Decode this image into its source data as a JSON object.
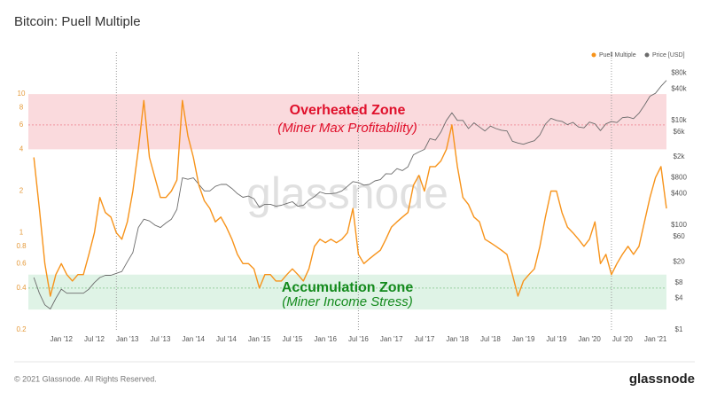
{
  "title": "Bitcoin: Puell Multiple",
  "footer": {
    "copyright": "© 2021 Glassnode. All Rights Reserved.",
    "logo": "glassnode"
  },
  "chart_data": {
    "type": "line",
    "watermark": "glassnode",
    "log_scale": true,
    "legend": "top-right",
    "x": [
      "2011-08",
      "2011-09",
      "2011-10",
      "2011-11",
      "2011-12",
      "2012-01",
      "2012-02",
      "2012-03",
      "2012-04",
      "2012-05",
      "2012-06",
      "2012-07",
      "2012-08",
      "2012-09",
      "2012-10",
      "2012-11",
      "2012-12",
      "2013-01",
      "2013-02",
      "2013-03",
      "2013-04",
      "2013-05",
      "2013-06",
      "2013-07",
      "2013-08",
      "2013-09",
      "2013-10",
      "2013-11",
      "2013-12",
      "2014-01",
      "2014-02",
      "2014-03",
      "2014-04",
      "2014-05",
      "2014-06",
      "2014-07",
      "2014-08",
      "2014-09",
      "2014-10",
      "2014-11",
      "2014-12",
      "2015-01",
      "2015-02",
      "2015-03",
      "2015-04",
      "2015-05",
      "2015-06",
      "2015-07",
      "2015-08",
      "2015-09",
      "2015-10",
      "2015-11",
      "2015-12",
      "2016-01",
      "2016-02",
      "2016-03",
      "2016-04",
      "2016-05",
      "2016-06",
      "2016-07",
      "2016-08",
      "2016-09",
      "2016-10",
      "2016-11",
      "2016-12",
      "2017-01",
      "2017-02",
      "2017-03",
      "2017-04",
      "2017-05",
      "2017-06",
      "2017-07",
      "2017-08",
      "2017-09",
      "2017-10",
      "2017-11",
      "2017-12",
      "2018-01",
      "2018-02",
      "2018-03",
      "2018-04",
      "2018-05",
      "2018-06",
      "2018-07",
      "2018-08",
      "2018-09",
      "2018-10",
      "2018-11",
      "2018-12",
      "2019-01",
      "2019-02",
      "2019-03",
      "2019-04",
      "2019-05",
      "2019-06",
      "2019-07",
      "2019-08",
      "2019-09",
      "2019-10",
      "2019-11",
      "2019-12",
      "2020-01",
      "2020-02",
      "2020-03",
      "2020-04",
      "2020-05",
      "2020-06",
      "2020-07",
      "2020-08",
      "2020-09",
      "2020-10",
      "2020-11",
      "2020-12",
      "2021-01",
      "2021-02",
      "2021-03"
    ],
    "series": [
      {
        "name": "Puell Multiple",
        "color": "#f7931a",
        "axis": "y",
        "values": [
          3.5,
          1.5,
          0.6,
          0.35,
          0.5,
          0.6,
          0.5,
          0.45,
          0.5,
          0.5,
          0.7,
          1.0,
          1.8,
          1.4,
          1.3,
          1.0,
          0.9,
          1.2,
          2.0,
          4.0,
          9.0,
          3.5,
          2.5,
          1.8,
          1.8,
          2.0,
          2.4,
          9.0,
          5.0,
          3.5,
          2.2,
          1.7,
          1.5,
          1.2,
          1.3,
          1.1,
          0.9,
          0.7,
          0.6,
          0.6,
          0.55,
          0.4,
          0.5,
          0.5,
          0.45,
          0.45,
          0.5,
          0.55,
          0.5,
          0.45,
          0.55,
          0.8,
          0.9,
          0.85,
          0.9,
          0.85,
          0.9,
          1.0,
          1.5,
          0.7,
          0.6,
          0.65,
          0.7,
          0.75,
          0.9,
          1.1,
          1.2,
          1.3,
          1.4,
          2.2,
          2.6,
          2.0,
          3.0,
          3.0,
          3.3,
          4.0,
          6.0,
          3.0,
          1.8,
          1.6,
          1.3,
          1.2,
          0.9,
          0.85,
          0.8,
          0.75,
          0.7,
          0.5,
          0.35,
          0.45,
          0.5,
          0.55,
          0.8,
          1.3,
          2.0,
          2.0,
          1.4,
          1.1,
          1.0,
          0.9,
          0.8,
          0.9,
          1.2,
          0.6,
          0.7,
          0.5,
          0.6,
          0.7,
          0.8,
          0.7,
          0.8,
          1.2,
          1.8,
          2.5,
          3.0,
          1.5
        ]
      },
      {
        "name": "Price [USD]",
        "color": "#6b6b6b",
        "axis": "y2",
        "values": [
          10,
          5,
          3,
          2.5,
          4,
          6,
          5,
          5,
          5,
          5,
          6,
          8,
          10,
          11,
          11,
          12,
          13,
          20,
          30,
          90,
          130,
          120,
          100,
          90,
          110,
          130,
          200,
          800,
          750,
          800,
          600,
          450,
          450,
          550,
          600,
          600,
          500,
          400,
          340,
          360,
          320,
          220,
          250,
          250,
          230,
          240,
          260,
          280,
          230,
          240,
          300,
          350,
          430,
          400,
          400,
          410,
          450,
          550,
          680,
          650,
          580,
          600,
          700,
          740,
          960,
          950,
          1200,
          1100,
          1300,
          2200,
          2500,
          2800,
          4500,
          4200,
          6000,
          10000,
          14000,
          10000,
          10000,
          7000,
          9000,
          7500,
          6300,
          7800,
          7000,
          6500,
          6300,
          4000,
          3700,
          3500,
          3800,
          4100,
          5300,
          8500,
          11000,
          10000,
          9600,
          8300,
          9200,
          7500,
          7200,
          9300,
          8600,
          6400,
          8600,
          9500,
          9100,
          11300,
          11600,
          10800,
          13700,
          19600,
          29000,
          33000,
          45000,
          58000
        ]
      }
    ],
    "xlim": [
      "2011-07",
      "2021-03"
    ],
    "xticks": [
      {
        "value": "2012-01",
        "label": "Jan '12"
      },
      {
        "value": "2012-07",
        "label": "Jul '12"
      },
      {
        "value": "2013-01",
        "label": "Jan '13"
      },
      {
        "value": "2013-07",
        "label": "Jul '13"
      },
      {
        "value": "2014-01",
        "label": "Jan '14"
      },
      {
        "value": "2014-07",
        "label": "Jul '14"
      },
      {
        "value": "2015-01",
        "label": "Jan '15"
      },
      {
        "value": "2015-07",
        "label": "Jul '15"
      },
      {
        "value": "2016-01",
        "label": "Jan '16"
      },
      {
        "value": "2016-07",
        "label": "Jul '16"
      },
      {
        "value": "2017-01",
        "label": "Jan '17"
      },
      {
        "value": "2017-07",
        "label": "Jul '17"
      },
      {
        "value": "2018-01",
        "label": "Jan '18"
      },
      {
        "value": "2018-07",
        "label": "Jul '18"
      },
      {
        "value": "2019-01",
        "label": "Jan '19"
      },
      {
        "value": "2019-07",
        "label": "Jul '19"
      },
      {
        "value": "2020-01",
        "label": "Jan '20"
      },
      {
        "value": "2020-07",
        "label": "Jul '20"
      },
      {
        "value": "2021-01",
        "label": "Jan '21"
      }
    ],
    "ylim": [
      0.2,
      20
    ],
    "yticks": [
      0.2,
      0.4,
      0.6,
      0.8,
      1,
      2,
      4,
      6,
      8,
      10
    ],
    "y2lim": [
      1,
      200000
    ],
    "y2ticks": [
      {
        "value": 1,
        "label": "$1"
      },
      {
        "value": 4,
        "label": "$4"
      },
      {
        "value": 8,
        "label": "$8"
      },
      {
        "value": 20,
        "label": "$20"
      },
      {
        "value": 60,
        "label": "$60"
      },
      {
        "value": 100,
        "label": "$100"
      },
      {
        "value": 400,
        "label": "$400"
      },
      {
        "value": 800,
        "label": "$800"
      },
      {
        "value": 2000,
        "label": "$2k"
      },
      {
        "value": 6000,
        "label": "$6k"
      },
      {
        "value": 10000,
        "label": "$10k"
      },
      {
        "value": 40000,
        "label": "$40k"
      },
      {
        "value": 80000,
        "label": "$80k"
      }
    ],
    "halvings": [
      "2012-11",
      "2016-07",
      "2020-05"
    ],
    "zones": [
      {
        "label": "Overheated Zone",
        "sublabel": "(Miner Max Profitability)",
        "from": 4,
        "to": 10,
        "line": 6,
        "color": "#fadadd",
        "text_color": "#e0102b"
      },
      {
        "label": "Accumulation Zone",
        "sublabel": "(Miner Income Stress)",
        "from": 0.28,
        "to": 0.5,
        "line": 0.4,
        "color": "#dff3e6",
        "text_color": "#138a1c"
      }
    ]
  }
}
